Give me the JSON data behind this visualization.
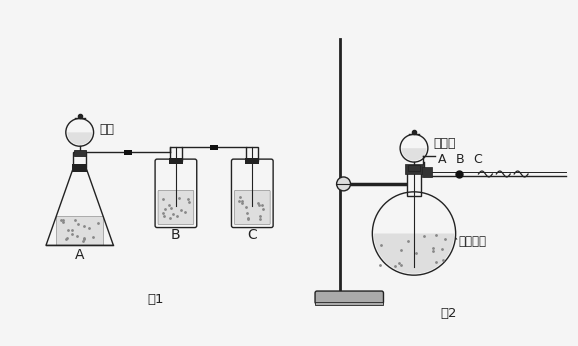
{
  "fig1_label": "图1",
  "fig2_label": "图2",
  "label_A1": "A",
  "label_B1": "B",
  "label_C1": "C",
  "label_hcl": "盐酸",
  "label_conc_hcl": "浓盐酸",
  "label_kmno4": "高锰酸钾",
  "label_A2": "A",
  "label_B2": "B",
  "label_C2": "C",
  "bg_color": "#f5f5f5",
  "line_color": "#222222",
  "figsize": [
    5.78,
    3.46
  ],
  "dpi": 100
}
